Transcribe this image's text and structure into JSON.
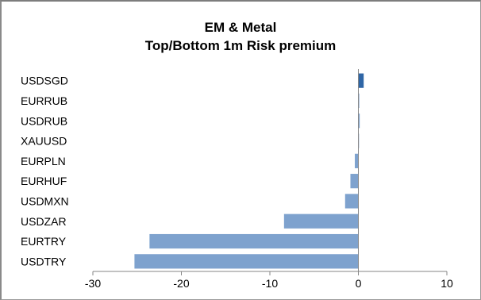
{
  "chart_data": {
    "type": "bar",
    "orientation": "horizontal",
    "title_line1": "EM & Metal",
    "title_line2": "Top/Bottom 1m Risk premium",
    "categories": [
      "USDSGD",
      "EURRUB",
      "USDRUB",
      "XAUUSD",
      "EURPLN",
      "EURHUF",
      "USDMXN",
      "USDZAR",
      "EURTRY",
      "USDTRY"
    ],
    "values": [
      0.6,
      0.1,
      0.15,
      0.05,
      -0.4,
      -0.9,
      -1.5,
      -8.4,
      -23.6,
      -25.3
    ],
    "xlim": [
      -30,
      10
    ],
    "xticks": [
      -30,
      -20,
      -10,
      0,
      10
    ],
    "grid": false,
    "legend": "none",
    "colors": {
      "bar": "#7ea2ce",
      "top_bar": "#2f66a6",
      "axis": "#868686"
    }
  }
}
